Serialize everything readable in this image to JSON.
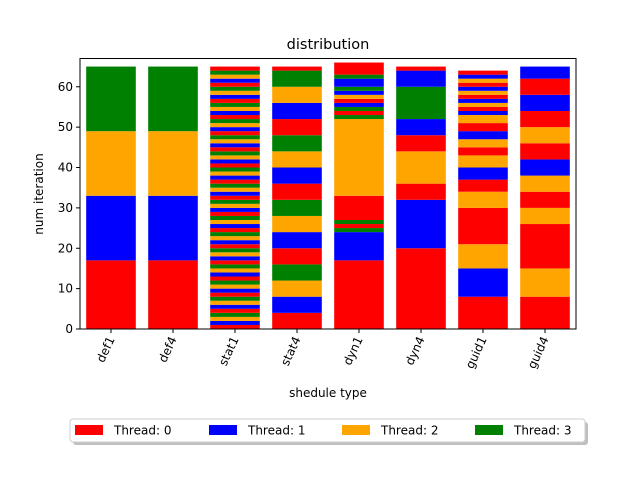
{
  "chart_data": {
    "type": "bar",
    "stacked": true,
    "title": "distribution",
    "xlabel": "shedule type",
    "ylabel": "num iteration",
    "ylim": [
      0,
      67
    ],
    "yticks": [
      0,
      10,
      20,
      30,
      40,
      50,
      60
    ],
    "categories": [
      "def1",
      "def4",
      "stat1",
      "stat4",
      "dyn1",
      "dyn4",
      "guid1",
      "guid4"
    ],
    "grid": false,
    "legend_position": "bottom-center",
    "series_colors": {
      "0": "#ff0000",
      "1": "#0000ff",
      "2": "#ffa500",
      "3": "#008000"
    },
    "series": [
      {
        "name": "Thread: 0",
        "color": "#ff0000"
      },
      {
        "name": "Thread: 1",
        "color": "#0000ff"
      },
      {
        "name": "Thread: 2",
        "color": "#ffa500"
      },
      {
        "name": "Thread: 3",
        "color": "#008000"
      }
    ],
    "bars": [
      {
        "category": "def1",
        "segments": [
          [
            0,
            17
          ],
          [
            1,
            16
          ],
          [
            2,
            16
          ],
          [
            3,
            16
          ]
        ]
      },
      {
        "category": "def4",
        "segments": [
          [
            0,
            17
          ],
          [
            1,
            16
          ],
          [
            2,
            16
          ],
          [
            3,
            16
          ]
        ]
      },
      {
        "category": "stat1",
        "segments": [
          [
            0,
            1
          ],
          [
            1,
            1
          ],
          [
            2,
            1
          ],
          [
            3,
            1
          ],
          [
            0,
            1
          ],
          [
            1,
            1
          ],
          [
            2,
            1
          ],
          [
            3,
            1
          ],
          [
            0,
            1
          ],
          [
            1,
            1
          ],
          [
            2,
            1
          ],
          [
            3,
            1
          ],
          [
            0,
            1
          ],
          [
            1,
            1
          ],
          [
            2,
            1
          ],
          [
            3,
            1
          ],
          [
            0,
            1
          ],
          [
            1,
            1
          ],
          [
            2,
            1
          ],
          [
            3,
            1
          ],
          [
            0,
            1
          ],
          [
            1,
            1
          ],
          [
            2,
            1
          ],
          [
            3,
            1
          ],
          [
            0,
            1
          ],
          [
            1,
            1
          ],
          [
            2,
            1
          ],
          [
            3,
            1
          ],
          [
            0,
            1
          ],
          [
            1,
            1
          ],
          [
            2,
            1
          ],
          [
            3,
            1
          ],
          [
            0,
            1
          ],
          [
            1,
            1
          ],
          [
            2,
            1
          ],
          [
            3,
            1
          ],
          [
            0,
            1
          ],
          [
            1,
            1
          ],
          [
            2,
            1
          ],
          [
            3,
            1
          ],
          [
            0,
            1
          ],
          [
            1,
            1
          ],
          [
            2,
            1
          ],
          [
            3,
            1
          ],
          [
            0,
            1
          ],
          [
            1,
            1
          ],
          [
            2,
            1
          ],
          [
            3,
            1
          ],
          [
            0,
            1
          ],
          [
            1,
            1
          ],
          [
            2,
            1
          ],
          [
            3,
            1
          ],
          [
            0,
            1
          ],
          [
            1,
            1
          ],
          [
            2,
            1
          ],
          [
            3,
            1
          ],
          [
            0,
            1
          ],
          [
            1,
            1
          ],
          [
            2,
            1
          ],
          [
            3,
            1
          ],
          [
            0,
            1
          ],
          [
            1,
            1
          ],
          [
            2,
            1
          ],
          [
            3,
            1
          ],
          [
            0,
            1
          ]
        ]
      },
      {
        "category": "stat4",
        "segments": [
          [
            0,
            4
          ],
          [
            1,
            4
          ],
          [
            2,
            4
          ],
          [
            3,
            4
          ],
          [
            0,
            4
          ],
          [
            1,
            4
          ],
          [
            2,
            4
          ],
          [
            3,
            4
          ],
          [
            0,
            4
          ],
          [
            1,
            4
          ],
          [
            2,
            4
          ],
          [
            3,
            4
          ],
          [
            0,
            4
          ],
          [
            1,
            4
          ],
          [
            2,
            4
          ],
          [
            3,
            4
          ],
          [
            0,
            1
          ]
        ]
      },
      {
        "category": "dyn1",
        "segments": [
          [
            0,
            17
          ],
          [
            1,
            7
          ],
          [
            3,
            1
          ],
          [
            0,
            1
          ],
          [
            3,
            1
          ],
          [
            0,
            6
          ],
          [
            2,
            19
          ],
          [
            3,
            1
          ],
          [
            0,
            1
          ],
          [
            3,
            1
          ],
          [
            1,
            1
          ],
          [
            0,
            1
          ],
          [
            2,
            1
          ],
          [
            1,
            1
          ],
          [
            3,
            1
          ],
          [
            1,
            2
          ],
          [
            3,
            1
          ],
          [
            0,
            3
          ]
        ]
      },
      {
        "category": "dyn4",
        "segments": [
          [
            0,
            20
          ],
          [
            1,
            12
          ],
          [
            0,
            4
          ],
          [
            2,
            8
          ],
          [
            0,
            4
          ],
          [
            1,
            4
          ],
          [
            3,
            8
          ],
          [
            1,
            4
          ],
          [
            0,
            1
          ]
        ]
      },
      {
        "category": "guid1",
        "segments": [
          [
            0,
            8
          ],
          [
            1,
            7
          ],
          [
            2,
            6
          ],
          [
            0,
            9
          ],
          [
            2,
            4
          ],
          [
            0,
            3
          ],
          [
            1,
            3
          ],
          [
            2,
            3
          ],
          [
            0,
            2
          ],
          [
            2,
            2
          ],
          [
            1,
            2
          ],
          [
            0,
            2
          ],
          [
            2,
            2
          ],
          [
            1,
            1
          ],
          [
            0,
            1
          ],
          [
            2,
            1
          ],
          [
            1,
            1
          ],
          [
            0,
            1
          ],
          [
            2,
            1
          ],
          [
            1,
            1
          ],
          [
            0,
            1
          ],
          [
            2,
            1
          ],
          [
            1,
            1
          ],
          [
            0,
            1
          ]
        ]
      },
      {
        "category": "guid4",
        "segments": [
          [
            0,
            8
          ],
          [
            2,
            7
          ],
          [
            0,
            11
          ],
          [
            2,
            4
          ],
          [
            0,
            4
          ],
          [
            2,
            4
          ],
          [
            1,
            4
          ],
          [
            0,
            4
          ],
          [
            2,
            4
          ],
          [
            0,
            4
          ],
          [
            1,
            4
          ],
          [
            0,
            4
          ],
          [
            1,
            3
          ]
        ]
      }
    ]
  }
}
